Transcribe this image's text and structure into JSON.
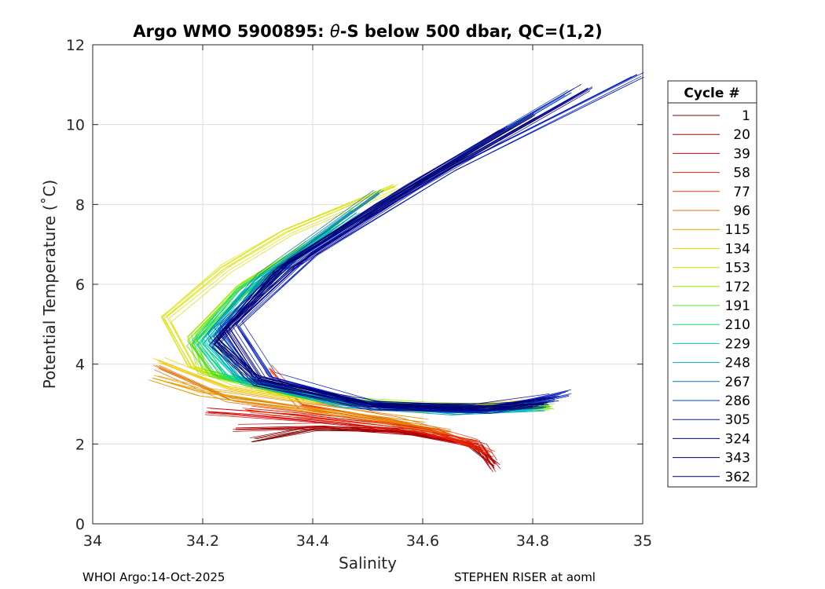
{
  "chart_data": {
    "type": "line",
    "title": "Argo WMO 5900895: θ-S below 500 dbar,  QC=(1,2)",
    "title_parts": {
      "pre": "Argo WMO 5900895: ",
      "theta": "θ",
      "post": "-S below 500 dbar,  QC=(1,2)"
    },
    "xlabel": "Salinity",
    "ylabel": "Potential Temperature (˚C)",
    "xlim": [
      34,
      35
    ],
    "ylim": [
      0,
      12
    ],
    "xticks": [
      34,
      34.2,
      34.4,
      34.6,
      34.8,
      35
    ],
    "xtick_labels": [
      "34",
      "34.2",
      "34.4",
      "34.6",
      "34.8",
      "35"
    ],
    "yticks": [
      0,
      2,
      4,
      6,
      8,
      10,
      12
    ],
    "ytick_labels": [
      "0",
      "2",
      "4",
      "6",
      "8",
      "10",
      "12"
    ],
    "grid": true,
    "legend": {
      "title": "Cycle #",
      "placement": "outside-right",
      "entries": [
        "1",
        "20",
        "39",
        "58",
        "77",
        "96",
        "115",
        "134",
        "153",
        "172",
        "191",
        "210",
        "229",
        "248",
        "267",
        "286",
        "305",
        "324",
        "343",
        "362"
      ],
      "colors": [
        "#7f0000",
        "#b00000",
        "#d20000",
        "#e82000",
        "#f04000",
        "#e07000",
        "#e89a00",
        "#f0c800",
        "#d8e000",
        "#98e800",
        "#50e020",
        "#10d878",
        "#00d0b0",
        "#00a8c0",
        "#0080a0",
        "#0040d0",
        "#0018c0",
        "#000090",
        "#000060",
        "#000080"
      ]
    },
    "series": [
      {
        "name": "1",
        "color": "#7f0000",
        "values": [
          [
            34.29,
            2.05
          ],
          [
            34.4,
            2.35
          ],
          [
            34.55,
            2.3
          ],
          [
            34.68,
            2.0
          ],
          [
            34.73,
            1.45
          ]
        ]
      },
      {
        "name": "20",
        "color": "#b00000",
        "values": [
          [
            34.26,
            2.4
          ],
          [
            34.42,
            2.45
          ],
          [
            34.58,
            2.3
          ],
          [
            34.7,
            2.0
          ],
          [
            34.73,
            1.4
          ]
        ]
      },
      {
        "name": "39",
        "color": "#d20000",
        "values": [
          [
            34.21,
            2.8
          ],
          [
            34.4,
            2.6
          ],
          [
            34.6,
            2.3
          ],
          [
            34.71,
            1.9
          ],
          [
            34.73,
            1.5
          ]
        ]
      },
      {
        "name": "58",
        "color": "#e82000",
        "values": [
          [
            34.28,
            2.85
          ],
          [
            34.45,
            2.6
          ],
          [
            34.62,
            2.3
          ],
          [
            34.72,
            1.75
          ]
        ]
      },
      {
        "name": "77",
        "color": "#f04000",
        "values": [
          [
            34.32,
            3.9
          ],
          [
            34.38,
            3.0
          ],
          [
            34.55,
            2.6
          ],
          [
            34.7,
            2.05
          ]
        ]
      },
      {
        "name": "96",
        "color": "#e07000",
        "values": [
          [
            34.12,
            3.9
          ],
          [
            34.25,
            3.1
          ],
          [
            34.45,
            2.75
          ],
          [
            34.65,
            2.3
          ]
        ]
      },
      {
        "name": "115",
        "color": "#e89a00",
        "values": [
          [
            34.11,
            3.65
          ],
          [
            34.2,
            3.3
          ],
          [
            34.4,
            2.9
          ],
          [
            34.6,
            2.55
          ]
        ]
      },
      {
        "name": "134",
        "color": "#f0c800",
        "values": [
          [
            34.12,
            4.1
          ],
          [
            34.25,
            3.4
          ],
          [
            34.4,
            3.1
          ],
          [
            34.6,
            2.85
          ],
          [
            34.82,
            3.05
          ]
        ]
      },
      {
        "name": "153",
        "color": "#d8e000",
        "values": [
          [
            34.55,
            8.45
          ],
          [
            34.35,
            7.3
          ],
          [
            34.24,
            6.4
          ],
          [
            34.13,
            5.15
          ],
          [
            34.18,
            3.9
          ],
          [
            34.35,
            3.2
          ],
          [
            34.6,
            2.9
          ]
        ]
      },
      {
        "name": "172",
        "color": "#98e800",
        "values": [
          [
            34.45,
            7.5
          ],
          [
            34.27,
            6.0
          ],
          [
            34.18,
            4.7
          ],
          [
            34.2,
            3.8
          ],
          [
            34.38,
            3.15
          ],
          [
            34.6,
            2.95
          ],
          [
            34.83,
            2.85
          ]
        ]
      },
      {
        "name": "191",
        "color": "#50e020",
        "values": [
          [
            34.4,
            7.0
          ],
          [
            34.26,
            5.6
          ],
          [
            34.18,
            4.5
          ],
          [
            34.22,
            3.75
          ],
          [
            34.4,
            3.15
          ],
          [
            34.6,
            2.9
          ],
          [
            34.83,
            2.95
          ]
        ]
      },
      {
        "name": "210",
        "color": "#10d878",
        "values": [
          [
            34.42,
            7.2
          ],
          [
            34.27,
            5.9
          ],
          [
            34.19,
            4.6
          ],
          [
            34.24,
            3.7
          ],
          [
            34.42,
            3.1
          ],
          [
            34.62,
            2.85
          ],
          [
            34.8,
            2.9
          ]
        ]
      },
      {
        "name": "229",
        "color": "#00d0b0",
        "values": [
          [
            34.44,
            7.4
          ],
          [
            34.28,
            5.8
          ],
          [
            34.2,
            4.5
          ],
          [
            34.26,
            3.65
          ],
          [
            34.45,
            3.05
          ],
          [
            34.65,
            2.8
          ],
          [
            34.8,
            2.85
          ]
        ]
      },
      {
        "name": "248",
        "color": "#00a8c0",
        "values": [
          [
            34.48,
            7.8
          ],
          [
            34.3,
            6.0
          ],
          [
            34.21,
            4.6
          ],
          [
            34.27,
            3.6
          ],
          [
            34.45,
            3.0
          ],
          [
            34.65,
            2.8
          ],
          [
            34.82,
            2.9
          ]
        ]
      },
      {
        "name": "267",
        "color": "#0080a0",
        "values": [
          [
            34.52,
            8.3
          ],
          [
            34.31,
            6.2
          ],
          [
            34.22,
            4.7
          ],
          [
            34.28,
            3.6
          ],
          [
            34.46,
            3.0
          ],
          [
            34.66,
            2.8
          ],
          [
            34.82,
            2.95
          ]
        ]
      },
      {
        "name": "286",
        "color": "#0040d0",
        "values": [
          [
            34.87,
            10.8
          ],
          [
            34.6,
            8.6
          ],
          [
            34.37,
            6.6
          ],
          [
            34.23,
            4.8
          ],
          [
            34.3,
            3.55
          ],
          [
            34.5,
            2.95
          ],
          [
            34.7,
            2.8
          ],
          [
            34.84,
            3.1
          ]
        ]
      },
      {
        "name": "305",
        "color": "#0018c0",
        "values": [
          [
            34.99,
            11.25
          ],
          [
            34.65,
            8.9
          ],
          [
            34.4,
            6.8
          ],
          [
            34.26,
            5.0
          ],
          [
            34.32,
            3.7
          ],
          [
            34.52,
            2.95
          ],
          [
            34.72,
            2.85
          ],
          [
            34.86,
            3.3
          ]
        ]
      },
      {
        "name": "324",
        "color": "#000090",
        "values": [
          [
            34.9,
            10.9
          ],
          [
            34.58,
            8.4
          ],
          [
            34.36,
            6.4
          ],
          [
            34.24,
            4.9
          ],
          [
            34.3,
            3.65
          ],
          [
            34.5,
            3.0
          ],
          [
            34.7,
            2.9
          ],
          [
            34.84,
            3.15
          ]
        ]
      },
      {
        "name": "343",
        "color": "#000060",
        "values": [
          [
            34.8,
            10.2
          ],
          [
            34.56,
            8.3
          ],
          [
            34.35,
            6.5
          ],
          [
            34.22,
            4.6
          ],
          [
            34.3,
            3.6
          ],
          [
            34.5,
            2.95
          ],
          [
            34.72,
            2.9
          ],
          [
            34.82,
            3.0
          ]
        ]
      },
      {
        "name": "362",
        "color": "#000080",
        "values": [
          [
            34.75,
            9.9
          ],
          [
            34.52,
            8.0
          ],
          [
            34.33,
            6.3
          ],
          [
            34.22,
            4.5
          ],
          [
            34.3,
            3.5
          ],
          [
            34.52,
            2.95
          ],
          [
            34.72,
            2.85
          ],
          [
            34.8,
            2.95
          ]
        ]
      }
    ]
  },
  "footer": {
    "left": "WHOI Argo:14-Oct-2025",
    "right": "STEPHEN RISER at aoml"
  }
}
